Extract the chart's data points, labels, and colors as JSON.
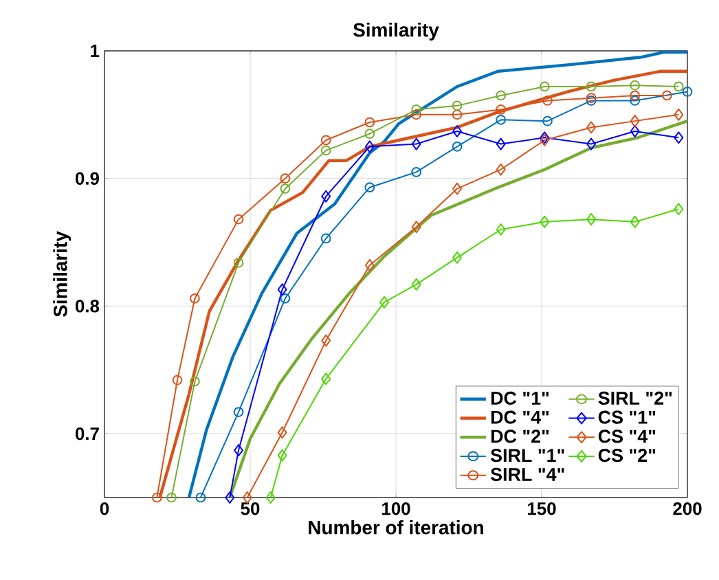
{
  "chart_data": {
    "type": "line",
    "title": "Similarity",
    "xlabel": "Number of iteration",
    "ylabel": "Similarity",
    "xlim": [
      0,
      200
    ],
    "ylim": [
      0.65,
      1
    ],
    "xticks": [
      0,
      50,
      100,
      150,
      200
    ],
    "yticks": [
      0.7,
      0.8,
      0.9,
      1
    ],
    "grid": true,
    "legend": "bottom right",
    "series": [
      {
        "name": "DC    \"1\"",
        "color": "#0072bd",
        "marker": "none",
        "x": [
          29,
          35,
          44,
          54,
          66,
          79,
          91,
          96,
          101,
          121,
          135,
          159,
          184,
          192,
          200
        ],
        "values": [
          0.65,
          0.703,
          0.76,
          0.81,
          0.857,
          0.88,
          0.92,
          0.929,
          0.943,
          0.972,
          0.984,
          0.989,
          0.995,
          0.999,
          0.999
        ]
      },
      {
        "name": "DC    \"4\"",
        "color": "#d95319",
        "marker": "none",
        "x": [
          19,
          29,
          36,
          46,
          57,
          68,
          77,
          83,
          91,
          101,
          121,
          135,
          159,
          175,
          191,
          200
        ],
        "values": [
          0.65,
          0.731,
          0.796,
          0.836,
          0.875,
          0.889,
          0.914,
          0.914,
          0.925,
          0.93,
          0.94,
          0.952,
          0.968,
          0.977,
          0.984,
          0.984
        ]
      },
      {
        "name": "DC    \"2\"",
        "color": "#77ac30",
        "marker": "none",
        "x": [
          43,
          50,
          60,
          71,
          84,
          96,
          112,
          135,
          151,
          167,
          183,
          200
        ],
        "values": [
          0.65,
          0.696,
          0.739,
          0.774,
          0.81,
          0.839,
          0.871,
          0.893,
          0.907,
          0.924,
          0.932,
          0.945
        ]
      },
      {
        "name": "SIRL \"1\"",
        "color": "#0072bd",
        "marker": "circle",
        "x": [
          33,
          46,
          62,
          76,
          91,
          107,
          121,
          136,
          152,
          167,
          182,
          200
        ],
        "values": [
          0.65,
          0.717,
          0.806,
          0.853,
          0.893,
          0.905,
          0.925,
          0.946,
          0.945,
          0.961,
          0.961,
          0.968
        ]
      },
      {
        "name": "SIRL \"4\"",
        "color": "#d95319",
        "marker": "circle",
        "x": [
          18,
          25,
          31,
          46,
          62,
          76,
          91,
          107,
          121,
          136,
          152,
          167,
          182,
          193
        ],
        "values": [
          0.65,
          0.742,
          0.806,
          0.868,
          0.9,
          0.93,
          0.944,
          0.95,
          0.95,
          0.954,
          0.961,
          0.963,
          0.965,
          0.965
        ]
      },
      {
        "name": "SIRL \"2\"",
        "color": "#77ac30",
        "marker": "circle",
        "x": [
          23,
          31,
          46,
          62,
          76,
          91,
          107,
          121,
          136,
          151,
          167,
          182,
          197
        ],
        "values": [
          0.65,
          0.741,
          0.834,
          0.892,
          0.922,
          0.935,
          0.954,
          0.957,
          0.965,
          0.972,
          0.972,
          0.973,
          0.972
        ]
      },
      {
        "name": "CS    \"1\"",
        "color": "#0000ff",
        "marker": "diamond",
        "x": [
          43,
          46,
          61,
          76,
          91,
          107,
          121,
          136,
          151,
          167,
          182,
          197
        ],
        "values": [
          0.65,
          0.687,
          0.813,
          0.886,
          0.925,
          0.927,
          0.937,
          0.927,
          0.932,
          0.927,
          0.937,
          0.932
        ]
      },
      {
        "name": "CS    \"4\"",
        "color": "#d95319",
        "marker": "diamond",
        "x": [
          49,
          61,
          76,
          91,
          107,
          121,
          136,
          151,
          167,
          182,
          197
        ],
        "values": [
          0.65,
          0.701,
          0.773,
          0.832,
          0.862,
          0.892,
          0.907,
          0.93,
          0.94,
          0.945,
          0.95
        ]
      },
      {
        "name": "CS    \"2\"",
        "color": "#4dd600",
        "marker": "diamond",
        "x": [
          57,
          61,
          76,
          96,
          107,
          121,
          136,
          151,
          167,
          182,
          197
        ],
        "values": [
          0.65,
          0.683,
          0.743,
          0.803,
          0.817,
          0.838,
          0.86,
          0.866,
          0.868,
          0.866,
          0.876
        ]
      }
    ]
  }
}
